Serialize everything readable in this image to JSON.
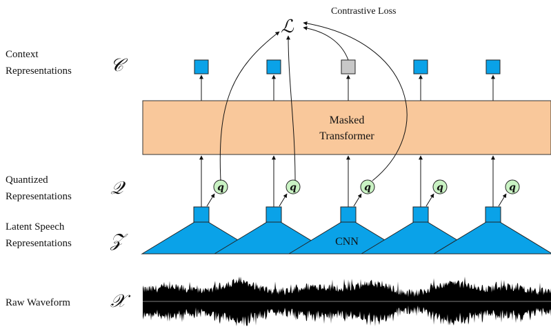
{
  "labels": {
    "contrastive_loss": "Contrastive Loss",
    "loss_symbol": "ℒ",
    "context_line1": "Context",
    "context_line2": "Representations",
    "context_symbol": "𝒞",
    "quantized_line1": "Quantized",
    "quantized_line2": "Representations",
    "quantized_symbol": "𝒬",
    "latent_line1": "Latent Speech",
    "latent_line2": "Representations",
    "latent_symbol": "𝒵",
    "raw_label": "Raw Waveform",
    "raw_symbol": "𝒳",
    "transformer_line1": "Masked",
    "transformer_line2": "Transformer",
    "cnn_label": "CNN",
    "q_symbol": "q"
  },
  "colors": {
    "blue": "#0aa2e8",
    "masked_gray": "#c8c8c8",
    "transformer_fill": "#f9c89b",
    "q_fill": "#c9f2c3",
    "waveform": "#000000"
  },
  "timesteps": [
    {
      "masked": false
    },
    {
      "masked": false
    },
    {
      "masked": true
    },
    {
      "masked": false
    },
    {
      "masked": false
    }
  ]
}
